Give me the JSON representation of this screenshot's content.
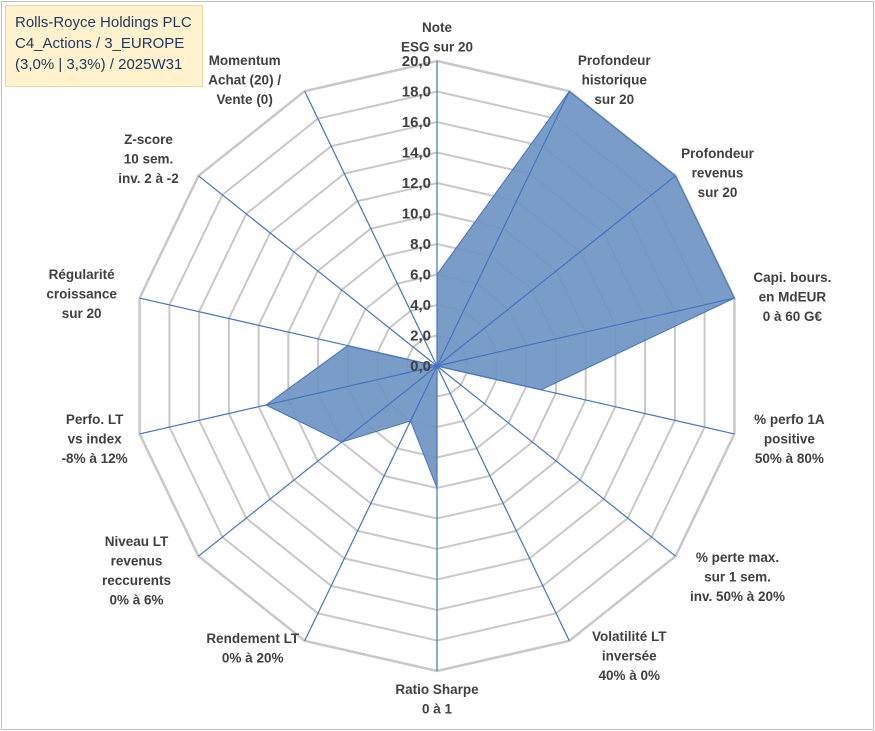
{
  "title_box": {
    "line1": "Rolls-Royce Holdings PLC",
    "line2": "C4_Actions / 3_EUROPE",
    "line3": "(3,0% | 3,3%) / 2025W31"
  },
  "chart_data": {
    "type": "radar",
    "categories": [
      "Note\nESG sur 20",
      "Profondeur\nhistorique\nsur 20",
      "Profondeur\nrevenus\nsur 20",
      "Capi. bours.\nen MdEUR\n0 à 60 G€",
      "% perfo 1A\npositive\n50% à 80%",
      "% perte max.\nsur 1 sem.\ninv. 50% à 20%",
      "Volatilité LT\ninversée\n40% à 0%",
      "Ratio Sharpe\n0 à 1",
      "Rendement LT\n0% à 20%",
      "Niveau LT\nrevenus\nreccurents\n0% à 6%",
      "Perfo. LT\nvs index\n-8% à 12%",
      "Régularité\ncroissance\nsur 20",
      "Z-score\n10 sem.\ninv. 2 à -2",
      "Momentum\nAchat (20) /\nVente (0)"
    ],
    "values": [
      6.0,
      20.0,
      20.0,
      20.0,
      7.0,
      0.0,
      0.0,
      8.0,
      4.0,
      8.0,
      11.5,
      6.0,
      0.0,
      0.0
    ],
    "axis_ticks": [
      "0,0",
      "2,0",
      "4,0",
      "6,0",
      "8,0",
      "10,0",
      "12,0",
      "14,0",
      "16,0",
      "18,0",
      "20,0"
    ],
    "axis_range": [
      0,
      20
    ],
    "colors": {
      "fill": "#6f95c2",
      "outline": "#4472c4",
      "grid": "#c8c8c8",
      "spoke": "#4472c4",
      "title_bg": "#fff2cc",
      "title_text": "#1f3864"
    }
  }
}
